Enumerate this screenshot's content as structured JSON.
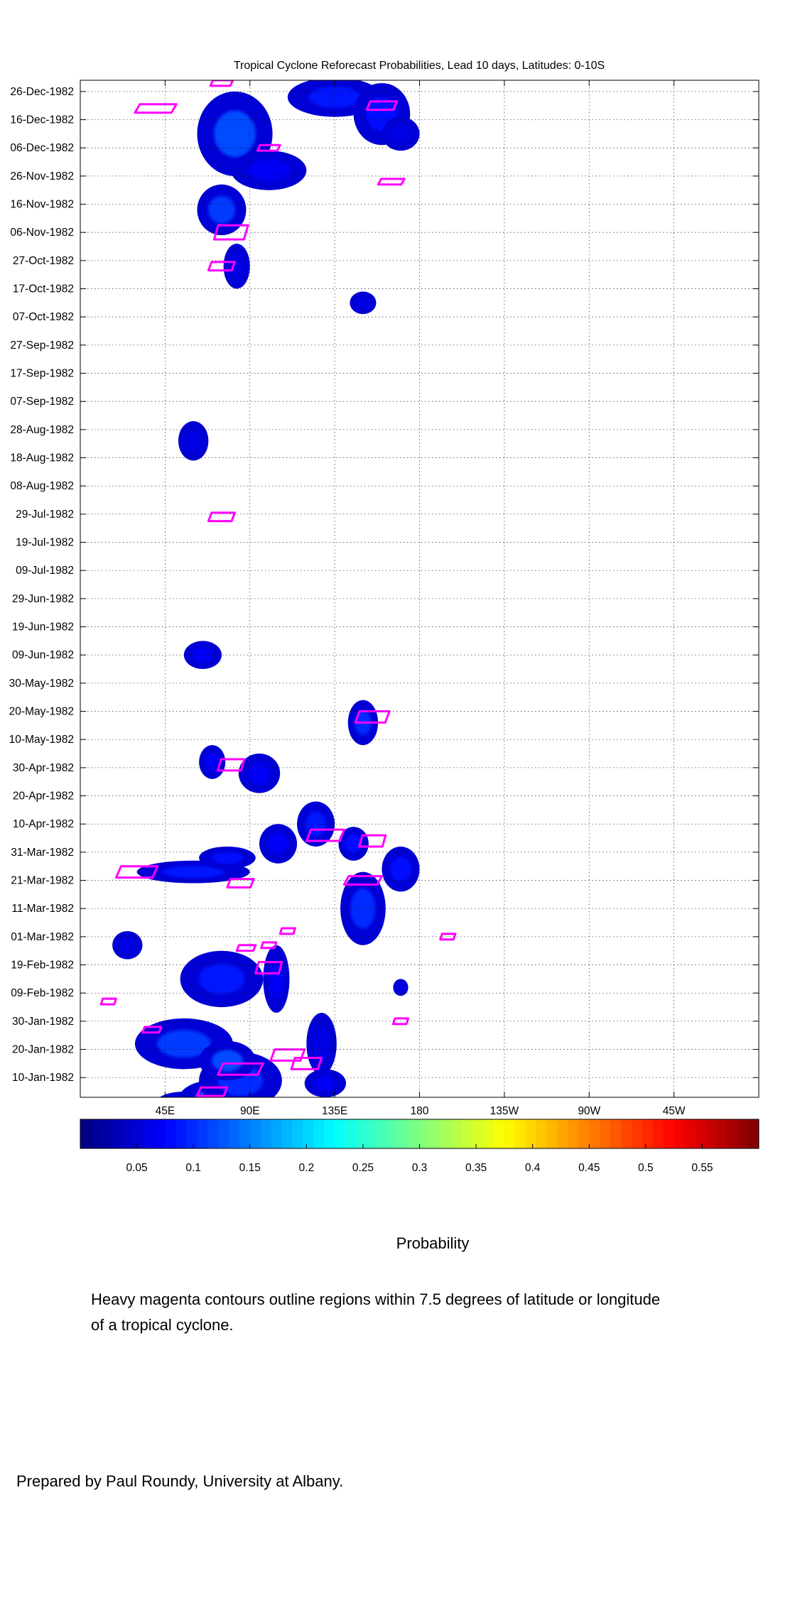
{
  "chart_data": {
    "type": "heatmap",
    "title": "Tropical Cyclone Reforecast Probabilities, Lead 10 days, Latitudes: 0-10S",
    "xlabel": "",
    "ylabel": "",
    "x_tick_labels": [
      "45E",
      "90E",
      "135E",
      "180",
      "135W",
      "90W",
      "45W"
    ],
    "x_tick_lons": [
      45,
      90,
      135,
      180,
      225,
      270,
      315
    ],
    "xlim": [
      0,
      360
    ],
    "y_tick_labels": [
      "26-Dec-1982",
      "16-Dec-1982",
      "06-Dec-1982",
      "26-Nov-1982",
      "16-Nov-1982",
      "06-Nov-1982",
      "27-Oct-1982",
      "17-Oct-1982",
      "07-Oct-1982",
      "27-Sep-1982",
      "17-Sep-1982",
      "07-Sep-1982",
      "28-Aug-1982",
      "18-Aug-1982",
      "08-Aug-1982",
      "29-Jul-1982",
      "19-Jul-1982",
      "09-Jul-1982",
      "29-Jun-1982",
      "19-Jun-1982",
      "09-Jun-1982",
      "30-May-1982",
      "20-May-1982",
      "10-May-1982",
      "30-Apr-1982",
      "20-Apr-1982",
      "10-Apr-1982",
      "31-Mar-1982",
      "21-Mar-1982",
      "11-Mar-1982",
      "01-Mar-1982",
      "19-Feb-1982",
      "09-Feb-1982",
      "30-Jan-1982",
      "20-Jan-1982",
      "10-Jan-1982"
    ],
    "y_tick_days": [
      360,
      350,
      340,
      330,
      320,
      310,
      300,
      290,
      280,
      270,
      260,
      250,
      240,
      230,
      220,
      210,
      200,
      190,
      180,
      170,
      160,
      150,
      140,
      130,
      120,
      110,
      100,
      90,
      80,
      70,
      60,
      50,
      40,
      30,
      20,
      10
    ],
    "ylim_days": [
      3,
      364
    ],
    "grid": true,
    "colorbar": {
      "label": "Probability",
      "range": [
        0,
        0.6
      ],
      "tick_labels": [
        "0.05",
        "0.1",
        "0.15",
        "0.2",
        "0.25",
        "0.3",
        "0.35",
        "0.4",
        "0.45",
        "0.5",
        "0.55"
      ],
      "tick_values": [
        0.05,
        0.1,
        0.15,
        0.2,
        0.25,
        0.3,
        0.35,
        0.4,
        0.45,
        0.5,
        0.55
      ],
      "colors": [
        "#00007f",
        "#0000ff",
        "#007fff",
        "#00ffff",
        "#7fff7f",
        "#ffff00",
        "#ff7f00",
        "#ff0000",
        "#7f0000"
      ]
    },
    "contour_color": "#ff00ff",
    "blobs": [
      {
        "lon": 55,
        "day": 1,
        "w": 30,
        "h": 8,
        "p": 0.1
      },
      {
        "lon": 70,
        "day": 2,
        "w": 36,
        "h": 14,
        "p": 0.12
      },
      {
        "lon": 85,
        "day": 9,
        "w": 44,
        "h": 20,
        "p": 0.1
      },
      {
        "lon": 55,
        "day": 22,
        "w": 52,
        "h": 18,
        "p": 0.11
      },
      {
        "lon": 78,
        "day": 16,
        "w": 30,
        "h": 14,
        "p": 0.12
      },
      {
        "lon": 130,
        "day": 8,
        "w": 22,
        "h": 10,
        "p": 0.07
      },
      {
        "lon": 75,
        "day": 45,
        "w": 44,
        "h": 20,
        "p": 0.09
      },
      {
        "lon": 104,
        "day": 45,
        "w": 14,
        "h": 24,
        "p": 0.07
      },
      {
        "lon": 128,
        "day": 22,
        "w": 16,
        "h": 22,
        "p": 0.06
      },
      {
        "lon": 170,
        "day": 42,
        "w": 8,
        "h": 6,
        "p": 0.06
      },
      {
        "lon": 25,
        "day": 57,
        "w": 16,
        "h": 10,
        "p": 0.06
      },
      {
        "lon": 150,
        "day": 70,
        "w": 24,
        "h": 26,
        "p": 0.1
      },
      {
        "lon": 170,
        "day": 84,
        "w": 20,
        "h": 16,
        "p": 0.08
      },
      {
        "lon": 60,
        "day": 83,
        "w": 60,
        "h": 8,
        "p": 0.09
      },
      {
        "lon": 78,
        "day": 88,
        "w": 30,
        "h": 8,
        "p": 0.08
      },
      {
        "lon": 105,
        "day": 93,
        "w": 20,
        "h": 14,
        "p": 0.07
      },
      {
        "lon": 125,
        "day": 100,
        "w": 20,
        "h": 16,
        "p": 0.09
      },
      {
        "lon": 145,
        "day": 93,
        "w": 16,
        "h": 12,
        "p": 0.08
      },
      {
        "lon": 95,
        "day": 118,
        "w": 22,
        "h": 14,
        "p": 0.07
      },
      {
        "lon": 70,
        "day": 122,
        "w": 14,
        "h": 12,
        "p": 0.07
      },
      {
        "lon": 150,
        "day": 136,
        "w": 16,
        "h": 16,
        "p": 0.1
      },
      {
        "lon": 65,
        "day": 160,
        "w": 20,
        "h": 10,
        "p": 0.07
      },
      {
        "lon": 150,
        "day": 285,
        "w": 14,
        "h": 8,
        "p": 0.06
      },
      {
        "lon": 60,
        "day": 236,
        "w": 16,
        "h": 14,
        "p": 0.06
      },
      {
        "lon": 75,
        "day": 318,
        "w": 26,
        "h": 18,
        "p": 0.11
      },
      {
        "lon": 83,
        "day": 298,
        "w": 14,
        "h": 16,
        "p": 0.06
      },
      {
        "lon": 82,
        "day": 345,
        "w": 40,
        "h": 30,
        "p": 0.12
      },
      {
        "lon": 100,
        "day": 332,
        "w": 40,
        "h": 14,
        "p": 0.07
      },
      {
        "lon": 135,
        "day": 358,
        "w": 50,
        "h": 14,
        "p": 0.09
      },
      {
        "lon": 160,
        "day": 352,
        "w": 30,
        "h": 22,
        "p": 0.08
      },
      {
        "lon": 170,
        "day": 345,
        "w": 20,
        "h": 12,
        "p": 0.06
      }
    ],
    "storm_contours": [
      {
        "lon": 70,
        "day": 5,
        "w": 16,
        "h": 3
      },
      {
        "lon": 85,
        "day": 13,
        "w": 24,
        "h": 4
      },
      {
        "lon": 110,
        "day": 18,
        "w": 18,
        "h": 4
      },
      {
        "lon": 120,
        "day": 15,
        "w": 16,
        "h": 4
      },
      {
        "lon": 38,
        "day": 27,
        "w": 10,
        "h": 2
      },
      {
        "lon": 170,
        "day": 30,
        "w": 8,
        "h": 2
      },
      {
        "lon": 100,
        "day": 49,
        "w": 14,
        "h": 4
      },
      {
        "lon": 88,
        "day": 56,
        "w": 10,
        "h": 2
      },
      {
        "lon": 100,
        "day": 57,
        "w": 8,
        "h": 2
      },
      {
        "lon": 110,
        "day": 62,
        "w": 8,
        "h": 2
      },
      {
        "lon": 195,
        "day": 60,
        "w": 8,
        "h": 2
      },
      {
        "lon": 15,
        "day": 37,
        "w": 8,
        "h": 2
      },
      {
        "lon": 30,
        "day": 83,
        "w": 22,
        "h": 4
      },
      {
        "lon": 85,
        "day": 79,
        "w": 14,
        "h": 3
      },
      {
        "lon": 150,
        "day": 80,
        "w": 20,
        "h": 3
      },
      {
        "lon": 130,
        "day": 96,
        "w": 20,
        "h": 4
      },
      {
        "lon": 155,
        "day": 94,
        "w": 14,
        "h": 4
      },
      {
        "lon": 80,
        "day": 121,
        "w": 14,
        "h": 4
      },
      {
        "lon": 155,
        "day": 138,
        "w": 18,
        "h": 4
      },
      {
        "lon": 75,
        "day": 209,
        "w": 14,
        "h": 3
      },
      {
        "lon": 75,
        "day": 298,
        "w": 14,
        "h": 3
      },
      {
        "lon": 80,
        "day": 310,
        "w": 18,
        "h": 5
      },
      {
        "lon": 165,
        "day": 328,
        "w": 14,
        "h": 2
      },
      {
        "lon": 100,
        "day": 340,
        "w": 12,
        "h": 2
      },
      {
        "lon": 40,
        "day": 354,
        "w": 22,
        "h": 3
      },
      {
        "lon": 160,
        "day": 355,
        "w": 16,
        "h": 3
      },
      {
        "lon": 75,
        "day": 363,
        "w": 12,
        "h": 2
      }
    ]
  },
  "note": "Heavy magenta contours outline regions within 7.5 degrees of latitude or longitude of a tropical cyclone.",
  "credit": "Prepared by Paul Roundy, University at Albany."
}
